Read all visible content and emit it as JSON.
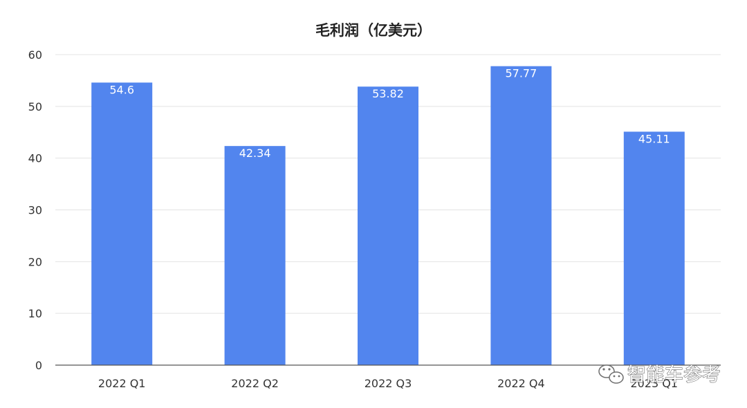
{
  "chart_data": {
    "type": "bar",
    "title": "毛利润（亿美元）",
    "xlabel": "",
    "ylabel": "",
    "categories": [
      "2022 Q1",
      "2022 Q2",
      "2022 Q3",
      "2022 Q4",
      "2023 Q1"
    ],
    "values": [
      54.6,
      42.34,
      53.82,
      57.77,
      45.11
    ],
    "data_labels": [
      "54.6",
      "42.34",
      "53.82",
      "57.77",
      "45.11"
    ],
    "ylim": [
      0,
      60
    ],
    "yticks": [
      0,
      10,
      20,
      30,
      40,
      50,
      60
    ],
    "grid": true,
    "legend": "none",
    "bar_color": "#5285EE",
    "gridline_color": "#e3e3e3",
    "axis_color": "#555555"
  },
  "watermark": {
    "text": "智能车参考",
    "icon": "wechat-icon"
  }
}
